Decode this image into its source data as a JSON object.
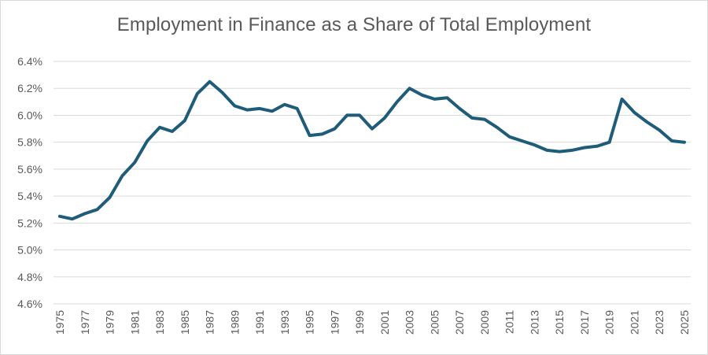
{
  "chart_data": {
    "type": "line",
    "title": "Employment in Finance as a Share of Total Employment",
    "xlabel": "",
    "ylabel": "",
    "ylim": [
      4.6,
      6.4
    ],
    "y_ticks": [
      "4.6%",
      "4.8%",
      "5.0%",
      "5.2%",
      "5.4%",
      "5.6%",
      "5.8%",
      "6.0%",
      "6.2%",
      "6.4%"
    ],
    "y_tick_values": [
      4.6,
      4.8,
      5.0,
      5.2,
      5.4,
      5.6,
      5.8,
      6.0,
      6.2,
      6.4
    ],
    "x_ticks": [
      "1975",
      "1977",
      "1979",
      "1981",
      "1983",
      "1985",
      "1987",
      "1989",
      "1991",
      "1993",
      "1995",
      "1997",
      "1999",
      "2001",
      "2003",
      "2005",
      "2007",
      "2009",
      "2011",
      "2013",
      "2015",
      "2017",
      "2019",
      "2021",
      "2023",
      "2025"
    ],
    "grid": true,
    "line_color": "#1f5c7a",
    "series": [
      {
        "x": [
          1975,
          1976,
          1977,
          1978,
          1979,
          1980,
          1981,
          1982,
          1983,
          1984,
          1985,
          1986,
          1987,
          1988,
          1989,
          1990,
          1991,
          1992,
          1993,
          1994,
          1995,
          1996,
          1997,
          1998,
          1999,
          2000,
          2001,
          2002,
          2003,
          2004,
          2005,
          2006,
          2007,
          2008,
          2009,
          2010,
          2011,
          2012,
          2013,
          2014,
          2015,
          2016,
          2017,
          2018,
          2019,
          2020,
          2021,
          2022,
          2023,
          2024,
          2025
        ],
        "values": [
          5.25,
          5.23,
          5.27,
          5.3,
          5.39,
          5.55,
          5.65,
          5.81,
          5.91,
          5.88,
          5.96,
          6.16,
          6.25,
          6.17,
          6.07,
          6.04,
          6.05,
          6.03,
          6.08,
          6.05,
          5.85,
          5.86,
          5.9,
          6.0,
          6.0,
          5.9,
          5.98,
          6.1,
          6.2,
          6.15,
          6.12,
          6.13,
          6.05,
          5.98,
          5.97,
          5.91,
          5.84,
          5.81,
          5.78,
          5.74,
          5.73,
          5.74,
          5.76,
          5.77,
          5.8,
          6.12,
          6.02,
          5.95,
          5.89,
          5.81,
          5.8
        ]
      }
    ]
  }
}
